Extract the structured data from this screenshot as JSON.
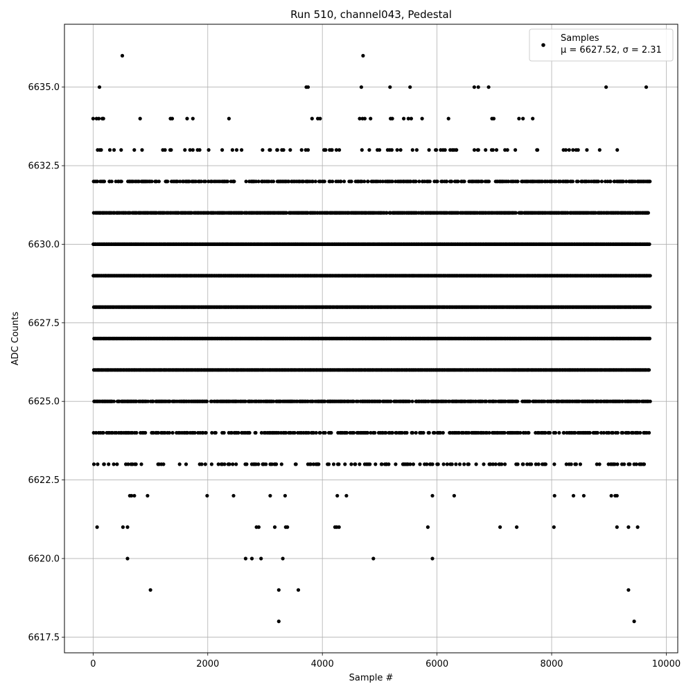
{
  "chart_data": {
    "type": "scatter",
    "title": "Run 510, channel043, Pedestal",
    "xlabel": "Sample #",
    "ylabel": "ADC Counts",
    "xlim": [
      -500,
      10200
    ],
    "ylim": [
      6617.0,
      6637.0
    ],
    "xticks": [
      0,
      2000,
      4000,
      6000,
      8000,
      10000
    ],
    "xtick_labels": [
      "0",
      "2000",
      "4000",
      "6000",
      "8000",
      "10000"
    ],
    "yticks": [
      6617.5,
      6620.0,
      6622.5,
      6625.0,
      6627.5,
      6630.0,
      6632.5,
      6635.0
    ],
    "ytick_labels": [
      "6617.5",
      "6620.0",
      "6622.5",
      "6625.0",
      "6627.5",
      "6630.0",
      "6632.5",
      "6635.0"
    ],
    "grid": true,
    "legend_position": "top-right",
    "series": [
      {
        "name": "Samples",
        "color": "#000000",
        "n_samples": 9720,
        "mean": 6627.52,
        "sigma": 2.31
      }
    ],
    "legend_label_line1": "Samples",
    "legend_label_line2": "μ = 6627.52, σ = 2.31",
    "outlier_points": [
      [
        510,
        6636
      ],
      [
        4710,
        6636
      ],
      [
        110,
        6635
      ],
      [
        3720,
        6635
      ],
      [
        3750,
        6635
      ],
      [
        4680,
        6635
      ],
      [
        5180,
        6635
      ],
      [
        5530,
        6635
      ],
      [
        6650,
        6635
      ],
      [
        6720,
        6635
      ],
      [
        6900,
        6635
      ],
      [
        8950,
        6635
      ],
      [
        9650,
        6635
      ],
      [
        0,
        6634
      ],
      [
        60,
        6634
      ],
      [
        100,
        6634
      ],
      [
        160,
        6634
      ],
      [
        180,
        6634
      ],
      [
        820,
        6634
      ],
      [
        1350,
        6634
      ],
      [
        1380,
        6634
      ],
      [
        1640,
        6634
      ],
      [
        1740,
        6634
      ],
      [
        2370,
        6634
      ],
      [
        3820,
        6634
      ],
      [
        3920,
        6634
      ],
      [
        3960,
        6634
      ],
      [
        4650,
        6634
      ],
      [
        4700,
        6634
      ],
      [
        4740,
        6634
      ],
      [
        4840,
        6634
      ],
      [
        5190,
        6634
      ],
      [
        5220,
        6634
      ],
      [
        5420,
        6634
      ],
      [
        5500,
        6634
      ],
      [
        5550,
        6634
      ],
      [
        5740,
        6634
      ],
      [
        6200,
        6634
      ],
      [
        6960,
        6634
      ],
      [
        6990,
        6634
      ],
      [
        7430,
        6634
      ],
      [
        7500,
        6634
      ],
      [
        7670,
        6634
      ],
      [
        70,
        6621
      ],
      [
        520,
        6621
      ],
      [
        600,
        6621
      ],
      [
        2850,
        6621
      ],
      [
        2890,
        6621
      ],
      [
        3170,
        6621
      ],
      [
        3360,
        6621
      ],
      [
        3390,
        6621
      ],
      [
        4220,
        6621
      ],
      [
        4250,
        6621
      ],
      [
        4290,
        6621
      ],
      [
        5840,
        6621
      ],
      [
        7100,
        6621
      ],
      [
        7390,
        6621
      ],
      [
        8040,
        6621
      ],
      [
        9140,
        6621
      ],
      [
        9340,
        6621
      ],
      [
        9500,
        6621
      ],
      [
        600,
        6620
      ],
      [
        2660,
        6620
      ],
      [
        2770,
        6620
      ],
      [
        2930,
        6620
      ],
      [
        3310,
        6620
      ],
      [
        4890,
        6620
      ],
      [
        5920,
        6620
      ],
      [
        1000,
        6619
      ],
      [
        3240,
        6619
      ],
      [
        3580,
        6619
      ],
      [
        9340,
        6619
      ],
      [
        3240,
        6618
      ],
      [
        9440,
        6618
      ],
      [
        640,
        6622
      ],
      [
        670,
        6622
      ],
      [
        720,
        6622
      ],
      [
        950,
        6622
      ],
      [
        1990,
        6622
      ],
      [
        2450,
        6622
      ],
      [
        3090,
        6622
      ],
      [
        3350,
        6622
      ],
      [
        4260,
        6622
      ],
      [
        4420,
        6622
      ],
      [
        5920,
        6622
      ],
      [
        6300,
        6622
      ],
      [
        8050,
        6622
      ],
      [
        8380,
        6622
      ],
      [
        8560,
        6622
      ],
      [
        9040,
        6622
      ],
      [
        9110,
        6622
      ],
      [
        9140,
        6622
      ]
    ]
  }
}
